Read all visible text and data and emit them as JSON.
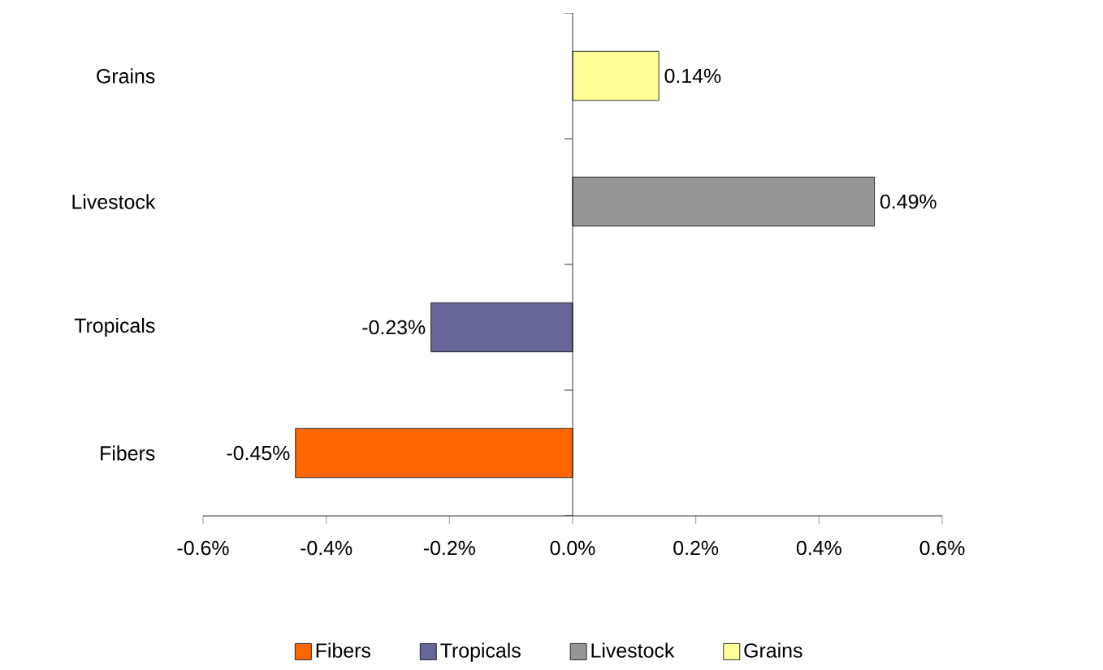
{
  "chart_data": {
    "type": "bar",
    "orientation": "horizontal",
    "categories": [
      "Grains",
      "Livestock",
      "Tropicals",
      "Fibers"
    ],
    "series": [
      {
        "name": "Fibers",
        "color": "#ff6600",
        "values": [
          null,
          null,
          null,
          -0.45
        ],
        "value_labels": [
          null,
          null,
          null,
          "-0.45%"
        ]
      },
      {
        "name": "Tropicals",
        "color": "#666699",
        "values": [
          null,
          null,
          -0.23,
          null
        ],
        "value_labels": [
          null,
          null,
          "-0.23%",
          null
        ]
      },
      {
        "name": "Livestock",
        "color": "#969696",
        "values": [
          null,
          0.49,
          null,
          null
        ],
        "value_labels": [
          null,
          "0.49%",
          null,
          null
        ]
      },
      {
        "name": "Grains",
        "color": "#ffff99",
        "values": [
          0.14,
          null,
          null,
          null
        ],
        "value_labels": [
          "0.14%",
          null,
          null,
          null
        ]
      }
    ],
    "xlim": [
      -0.6,
      0.6
    ],
    "xticks": [
      {
        "value": -0.6,
        "label": "-0.6%"
      },
      {
        "value": -0.4,
        "label": "-0.4%"
      },
      {
        "value": -0.2,
        "label": "-0.2%"
      },
      {
        "value": 0,
        "label": "0.0%"
      },
      {
        "value": 0.2,
        "label": "0.2%"
      },
      {
        "value": 0.4,
        "label": "0.4%"
      },
      {
        "value": 0.6,
        "label": "0.6%"
      }
    ],
    "legend": "bottom"
  }
}
